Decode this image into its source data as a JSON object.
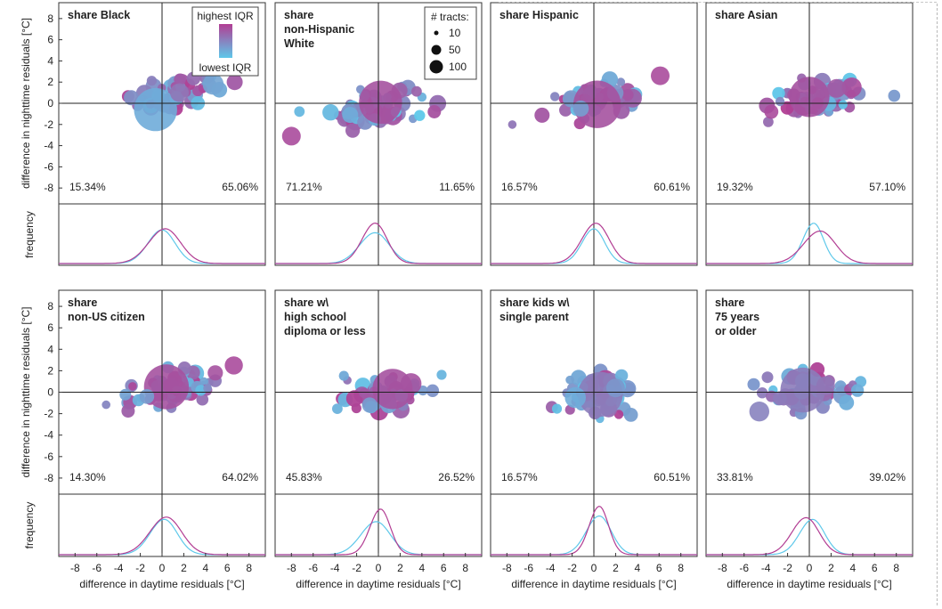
{
  "chart_data": {
    "type": "scatter",
    "figure_axis_labels": {
      "ylabel_scatter": "difference in nighttime residuals [°C]",
      "ylabel_density": "frequency",
      "xlabel": "difference in daytime residuals [°C]"
    },
    "x_ticks": [
      -8,
      -6,
      -4,
      -2,
      0,
      2,
      4,
      6,
      8
    ],
    "y_ticks": [
      8,
      6,
      4,
      2,
      0,
      -2,
      -4,
      -6,
      -8
    ],
    "x_range": [
      -9.5,
      9.5
    ],
    "y_range": [
      -9.5,
      9.5
    ],
    "color_legend": {
      "high_label": "highest IQR",
      "low_label": "lowest IQR",
      "high_color": "#b23d93",
      "low_color": "#5ec8ea"
    },
    "size_legend": {
      "title": "# tracts:",
      "entries": [
        {
          "label": "10",
          "value": 10
        },
        {
          "label": "50",
          "value": 50
        },
        {
          "label": "100",
          "value": 100
        }
      ]
    },
    "panels": [
      {
        "title_lines": [
          "share Black"
        ],
        "left_pct": "15.34%",
        "right_pct": "65.06%",
        "big_markers": [
          {
            "x": -0.6,
            "y": -0.6,
            "n": 210,
            "c": 0.2
          },
          {
            "x": 4.7,
            "y": 1.8,
            "n": 40,
            "c": 0.25
          },
          {
            "x": 1.6,
            "y": 1.0,
            "n": 30,
            "c": 0.6
          }
        ],
        "cloud": {
          "cx": 1.4,
          "cy": 1.0,
          "sx": 2.0,
          "sy": 0.8,
          "rho": 0.45,
          "count": 60
        },
        "density_high": {
          "mu": 0.3,
          "sigma": 1.4,
          "peak": 0.62
        },
        "density_low": {
          "mu": 0.0,
          "sigma": 1.2,
          "peak": 0.6
        }
      },
      {
        "title_lines": [
          "share",
          "non-Hispanic",
          "White"
        ],
        "left_pct": "71.21%",
        "right_pct": "11.65%",
        "big_markers": [
          {
            "x": 0.2,
            "y": 0.1,
            "n": 210,
            "c": 0.85
          },
          {
            "x": -8.0,
            "y": -3.1,
            "n": 30,
            "c": 0.9
          },
          {
            "x": -2.6,
            "y": -1.1,
            "n": 20,
            "c": 0.2
          }
        ],
        "cloud": {
          "cx": -0.3,
          "cy": -0.3,
          "sx": 2.0,
          "sy": 0.9,
          "rho": 0.45,
          "count": 60
        },
        "density_high": {
          "mu": -0.3,
          "sigma": 1.1,
          "peak": 0.72
        },
        "density_low": {
          "mu": -0.3,
          "sigma": 1.3,
          "peak": 0.55
        }
      },
      {
        "title_lines": [
          "share Hispanic"
        ],
        "left_pct": "16.57%",
        "right_pct": "60.61%",
        "big_markers": [
          {
            "x": 0.3,
            "y": -0.1,
            "n": 260,
            "c": 0.85
          },
          {
            "x": 6.1,
            "y": 2.6,
            "n": 30,
            "c": 0.9
          },
          {
            "x": -1.2,
            "y": -0.5,
            "n": 20,
            "c": 0.3
          }
        ],
        "cloud": {
          "cx": 0.3,
          "cy": 0.1,
          "sx": 2.3,
          "sy": 0.8,
          "rho": 0.35,
          "count": 60
        },
        "density_high": {
          "mu": 0.2,
          "sigma": 1.2,
          "peak": 0.72
        },
        "density_low": {
          "mu": 0.0,
          "sigma": 1.0,
          "peak": 0.62
        }
      },
      {
        "title_lines": [
          "share Asian"
        ],
        "left_pct": "19.32%",
        "right_pct": "57.10%",
        "big_markers": [
          {
            "x": 0.0,
            "y": 0.6,
            "n": 180,
            "c": 0.85
          },
          {
            "x": 3.9,
            "y": 1.5,
            "n": 35,
            "c": 0.9
          },
          {
            "x": 2.5,
            "y": 1.4,
            "n": 30,
            "c": 0.8
          },
          {
            "x": -3.5,
            "y": -0.8,
            "n": 14,
            "c": 0.9
          }
        ],
        "cloud": {
          "cx": 0.6,
          "cy": 0.3,
          "sx": 2.2,
          "sy": 0.9,
          "rho": 0.25,
          "count": 60
        },
        "density_high": {
          "mu": 1.0,
          "sigma": 1.4,
          "peak": 0.58
        },
        "density_low": {
          "mu": 0.4,
          "sigma": 0.9,
          "peak": 0.72
        }
      },
      {
        "title_lines": [
          "share",
          "non-US citizen"
        ],
        "left_pct": "14.30%",
        "right_pct": "64.02%",
        "big_markers": [
          {
            "x": 0.4,
            "y": 0.5,
            "n": 230,
            "c": 0.85
          },
          {
            "x": 6.6,
            "y": 2.5,
            "n": 28,
            "c": 0.9
          },
          {
            "x": 4.9,
            "y": 1.8,
            "n": 18,
            "c": 0.85
          },
          {
            "x": -1.4,
            "y": -0.4,
            "n": 16,
            "c": 0.3
          }
        ],
        "cloud": {
          "cx": 0.7,
          "cy": 0.3,
          "sx": 2.3,
          "sy": 0.8,
          "rho": 0.4,
          "count": 60
        },
        "density_high": {
          "mu": 0.4,
          "sigma": 1.4,
          "peak": 0.66
        },
        "density_low": {
          "mu": 0.2,
          "sigma": 1.2,
          "peak": 0.62
        }
      },
      {
        "title_lines": [
          "share w\\",
          "high school",
          "diploma or less"
        ],
        "left_pct": "45.83%",
        "right_pct": "26.52%",
        "big_markers": [
          {
            "x": 1.3,
            "y": 0.3,
            "n": 180,
            "c": 0.85
          },
          {
            "x": 3.0,
            "y": 0.8,
            "n": 40,
            "c": 0.85
          },
          {
            "x": -0.8,
            "y": -1.2,
            "n": 18,
            "c": 0.3
          }
        ],
        "cloud": {
          "cx": 0.0,
          "cy": -0.3,
          "sx": 2.4,
          "sy": 0.9,
          "rho": 0.3,
          "count": 60
        },
        "density_high": {
          "mu": 0.2,
          "sigma": 0.9,
          "peak": 0.8
        },
        "density_low": {
          "mu": -0.2,
          "sigma": 1.3,
          "peak": 0.58
        }
      },
      {
        "title_lines": [
          "share kids w\\",
          "single parent"
        ],
        "left_pct": "16.57%",
        "right_pct": "60.51%",
        "big_markers": [
          {
            "x": 0.6,
            "y": -0.2,
            "n": 230,
            "c": 0.55
          },
          {
            "x": -1.7,
            "y": -0.5,
            "n": 40,
            "c": 0.2
          },
          {
            "x": 2.0,
            "y": 0.4,
            "n": 30,
            "c": 0.35
          }
        ],
        "cloud": {
          "cx": 0.6,
          "cy": 0.1,
          "sx": 2.1,
          "sy": 0.9,
          "rho": 0.2,
          "count": 60
        },
        "density_high": {
          "mu": 0.5,
          "sigma": 0.85,
          "peak": 0.85
        },
        "density_low": {
          "mu": 0.5,
          "sigma": 1.1,
          "peak": 0.68
        }
      },
      {
        "title_lines": [
          "share",
          "75 years",
          "or older"
        ],
        "left_pct": "33.81%",
        "right_pct": "39.02%",
        "big_markers": [
          {
            "x": -0.6,
            "y": 0.2,
            "n": 230,
            "c": 0.55
          },
          {
            "x": -4.6,
            "y": -1.8,
            "n": 35,
            "c": 0.5
          },
          {
            "x": 1.5,
            "y": 0.6,
            "n": 30,
            "c": 0.6
          }
        ],
        "cloud": {
          "cx": 0.0,
          "cy": 0.2,
          "sx": 2.3,
          "sy": 0.9,
          "rho": 0.3,
          "count": 60
        },
        "density_high": {
          "mu": -0.3,
          "sigma": 1.2,
          "peak": 0.65
        },
        "density_low": {
          "mu": 0.3,
          "sigma": 1.1,
          "peak": 0.62
        }
      }
    ]
  }
}
